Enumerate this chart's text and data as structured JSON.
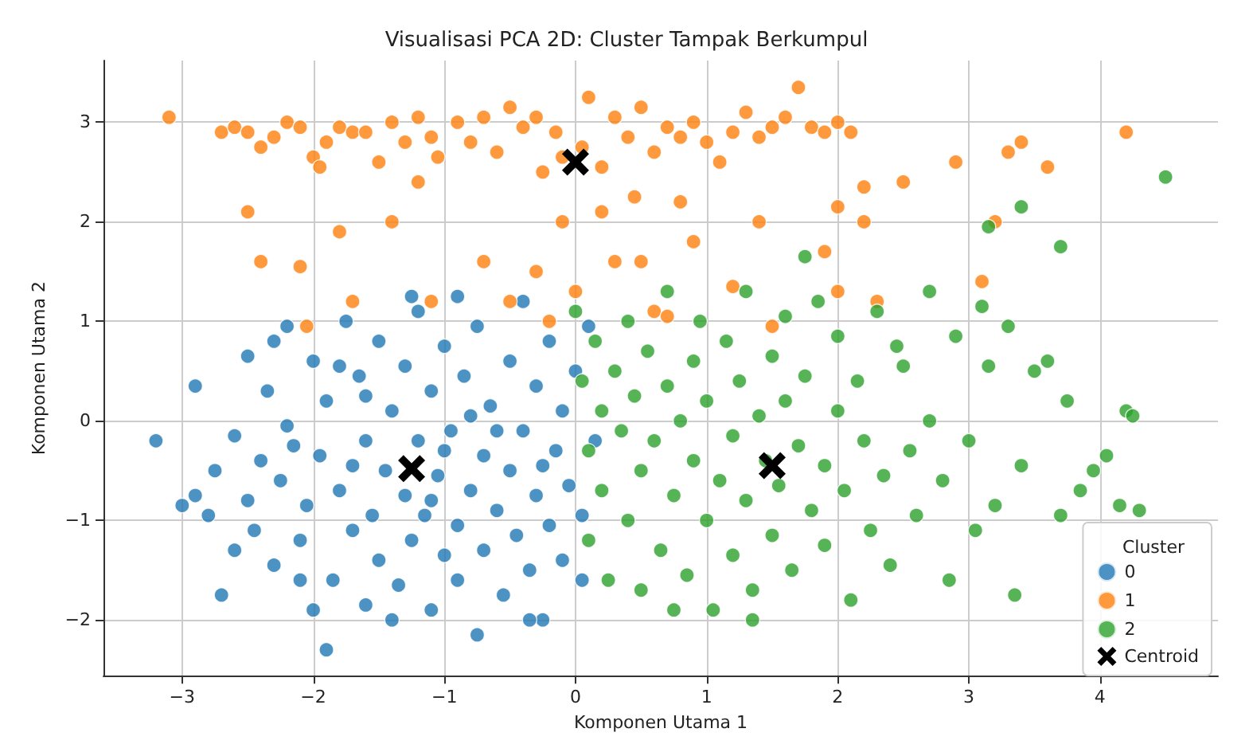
{
  "chart_data": {
    "type": "scatter",
    "title": "Visualisasi PCA 2D: Cluster Tampak Berkumpul",
    "xlabel": "Komponen Utama 1",
    "ylabel": "Komponen Utama 2",
    "legend_title": "Cluster",
    "legend": "bottom right",
    "grid": true,
    "xlim": [
      -3.6,
      4.9
    ],
    "xticks": [
      -3,
      -2,
      -1,
      0,
      1,
      2,
      3,
      4
    ],
    "ylim": [
      -2.56,
      3.62
    ],
    "yticks": [
      -2,
      -1,
      0,
      1,
      2,
      3
    ],
    "series": [
      {
        "name": "0",
        "color": "#1f77b4",
        "marker": "circle",
        "x": [
          -3.2,
          -3.0,
          -2.9,
          -2.8,
          -2.7,
          -2.75,
          -2.6,
          -2.5,
          -2.5,
          -2.45,
          -2.4,
          -2.35,
          -2.3,
          -2.25,
          -2.2,
          -2.2,
          -2.1,
          -2.05,
          -2.0,
          -2.0,
          -1.95,
          -1.9,
          -1.9,
          -1.85,
          -1.8,
          -1.75,
          -1.7,
          -1.65,
          -1.6,
          -1.6,
          -1.55,
          -1.5,
          -1.5,
          -1.45,
          -1.4,
          -1.35,
          -1.3,
          -1.3,
          -1.25,
          -1.2,
          -1.2,
          -1.15,
          -1.1,
          -1.1,
          -1.05,
          -1.0,
          -1.0,
          -0.95,
          -0.9,
          -0.9,
          -0.85,
          -0.8,
          -0.75,
          -0.75,
          -0.7,
          -0.7,
          -0.65,
          -0.6,
          -0.55,
          -0.5,
          -0.5,
          -0.45,
          -0.4,
          -0.4,
          -0.35,
          -0.3,
          -0.3,
          -0.25,
          -0.2,
          -0.2,
          -0.15,
          -0.1,
          -0.1,
          -0.05,
          0.0,
          0.05,
          0.05,
          0.1,
          0.15,
          -2.6,
          -2.3,
          -1.8,
          -1.4,
          -1.0,
          -0.6,
          -0.35,
          -1.6,
          -2.15,
          -1.1,
          -0.8,
          -0.9,
          -1.25,
          -2.1,
          -2.9,
          -1.7,
          -0.25
        ],
        "values": [
          -0.2,
          -0.85,
          -0.75,
          -0.95,
          -1.75,
          -0.5,
          -0.15,
          -0.8,
          0.65,
          -1.1,
          -0.4,
          0.3,
          -1.45,
          -0.6,
          0.95,
          -0.05,
          -1.2,
          -0.85,
          0.6,
          -1.9,
          -0.35,
          -2.3,
          0.2,
          -1.6,
          -0.7,
          1.0,
          -1.1,
          0.45,
          -0.2,
          -1.85,
          -0.95,
          0.8,
          -1.4,
          -0.5,
          0.1,
          -1.65,
          -0.75,
          0.55,
          -1.2,
          -0.2,
          1.1,
          -0.95,
          -1.9,
          0.3,
          -0.55,
          -1.35,
          0.75,
          -0.1,
          -1.05,
          -1.6,
          0.45,
          -0.7,
          -2.15,
          0.95,
          -0.35,
          -1.3,
          0.15,
          -0.9,
          -1.75,
          0.6,
          -0.5,
          -1.15,
          1.2,
          -0.1,
          -1.5,
          -0.75,
          0.35,
          -2.0,
          -1.05,
          0.8,
          -0.3,
          -1.4,
          0.1,
          -0.65,
          0.5,
          -1.6,
          -0.95,
          0.95,
          -0.2,
          -1.3,
          0.8,
          0.55,
          -2.0,
          -0.3,
          -0.1,
          -2.0,
          0.25,
          -0.25,
          -0.8,
          0.05,
          1.25,
          1.25,
          -1.6,
          0.35,
          -0.45,
          -0.45
        ]
      },
      {
        "name": "1",
        "color": "#ff7f0e",
        "marker": "circle",
        "x": [
          -3.1,
          -2.7,
          -2.6,
          -2.5,
          -2.4,
          -2.3,
          -2.2,
          -2.1,
          -2.0,
          -1.95,
          -1.9,
          -1.8,
          -1.7,
          -1.6,
          -1.5,
          -1.4,
          -1.3,
          -1.2,
          -1.1,
          -1.05,
          -0.9,
          -0.8,
          -0.7,
          -0.6,
          -0.5,
          -0.4,
          -0.3,
          -0.25,
          -0.15,
          -0.1,
          0.05,
          0.1,
          0.2,
          0.3,
          0.4,
          0.5,
          0.6,
          0.7,
          0.8,
          0.9,
          1.0,
          1.1,
          1.2,
          1.3,
          1.4,
          1.5,
          1.6,
          1.7,
          1.8,
          1.9,
          2.0,
          2.1,
          2.2,
          2.5,
          2.9,
          3.3,
          3.4,
          4.2,
          -2.5,
          -1.8,
          -1.4,
          -0.7,
          -0.5,
          -0.3,
          0.0,
          0.2,
          0.5,
          0.6,
          0.9,
          1.2,
          1.4,
          1.5,
          2.0,
          2.2,
          2.3,
          3.1,
          3.2,
          -2.1,
          -1.1,
          -1.7,
          -0.2,
          0.3,
          0.8,
          1.9,
          -1.2,
          -0.1,
          0.45,
          2.0,
          3.6,
          0.7,
          -2.05,
          -2.4
        ],
        "values": [
          3.05,
          2.9,
          2.95,
          2.9,
          2.75,
          2.85,
          3.0,
          2.95,
          2.65,
          2.55,
          2.8,
          2.95,
          2.9,
          2.9,
          2.6,
          3.0,
          2.8,
          3.05,
          2.85,
          2.65,
          3.0,
          2.8,
          3.05,
          2.7,
          3.15,
          2.95,
          3.05,
          2.5,
          2.9,
          2.65,
          2.75,
          3.25,
          2.55,
          3.05,
          2.85,
          3.15,
          2.7,
          2.95,
          2.85,
          3.0,
          2.8,
          2.6,
          2.9,
          3.1,
          2.85,
          2.95,
          3.05,
          3.35,
          2.95,
          2.9,
          3.0,
          2.9,
          2.35,
          2.4,
          2.6,
          2.7,
          2.8,
          2.9,
          2.1,
          1.9,
          2.0,
          1.6,
          1.2,
          1.5,
          1.3,
          2.1,
          1.6,
          1.1,
          1.8,
          1.35,
          2.0,
          0.95,
          1.3,
          2.0,
          1.2,
          1.4,
          2.0,
          1.55,
          1.2,
          1.2,
          1.0,
          1.6,
          2.2,
          1.7,
          2.4,
          2.0,
          2.25,
          2.15,
          2.55,
          1.05,
          0.95,
          1.6
        ]
      },
      {
        "name": "2",
        "color": "#2ca02c",
        "marker": "circle",
        "x": [
          0.0,
          0.05,
          0.1,
          0.1,
          0.15,
          0.2,
          0.2,
          0.25,
          0.3,
          0.35,
          0.4,
          0.4,
          0.45,
          0.5,
          0.5,
          0.55,
          0.6,
          0.65,
          0.7,
          0.7,
          0.75,
          0.8,
          0.85,
          0.9,
          0.9,
          0.95,
          1.0,
          1.0,
          1.05,
          1.1,
          1.15,
          1.2,
          1.2,
          1.25,
          1.3,
          1.3,
          1.35,
          1.4,
          1.45,
          1.5,
          1.5,
          1.55,
          1.6,
          1.6,
          1.65,
          1.7,
          1.75,
          1.8,
          1.85,
          1.9,
          1.9,
          2.0,
          2.0,
          2.05,
          2.1,
          2.15,
          2.2,
          2.25,
          2.3,
          2.35,
          2.4,
          2.5,
          2.55,
          2.6,
          2.7,
          2.7,
          2.8,
          2.85,
          2.9,
          3.0,
          3.05,
          3.1,
          3.15,
          3.2,
          3.3,
          3.35,
          3.4,
          3.5,
          3.6,
          3.7,
          3.7,
          3.75,
          3.85,
          4.05,
          4.15,
          4.2,
          4.3,
          4.5,
          3.4,
          3.15,
          1.35,
          0.75,
          3.95,
          4.25,
          2.45,
          1.75
        ],
        "values": [
          1.1,
          0.4,
          -0.3,
          -1.2,
          0.8,
          0.1,
          -0.7,
          -1.6,
          0.5,
          -0.1,
          -1.0,
          1.0,
          0.25,
          -0.5,
          -1.7,
          0.7,
          -0.2,
          -1.3,
          0.35,
          1.3,
          -0.75,
          0.0,
          -1.55,
          0.6,
          -0.4,
          1.0,
          -1.0,
          0.2,
          -1.9,
          -0.6,
          0.8,
          -0.15,
          -1.35,
          0.4,
          1.3,
          -0.8,
          -1.7,
          0.05,
          -0.4,
          0.65,
          -1.15,
          -0.65,
          1.05,
          0.2,
          -1.5,
          -0.25,
          0.45,
          -0.9,
          1.2,
          -0.45,
          -1.25,
          0.1,
          0.85,
          -0.7,
          -1.8,
          0.4,
          -0.2,
          -1.1,
          1.1,
          -0.55,
          -1.45,
          0.55,
          -0.3,
          -0.95,
          1.3,
          0.0,
          -0.6,
          -1.6,
          0.85,
          -0.2,
          -1.1,
          1.15,
          0.55,
          -0.85,
          0.95,
          -1.75,
          -0.45,
          0.5,
          0.6,
          1.75,
          -0.95,
          0.2,
          -0.7,
          -0.35,
          -0.85,
          0.1,
          -0.9,
          2.45,
          2.15,
          1.95,
          -2.0,
          -1.9,
          -0.5,
          0.05,
          0.75,
          1.65
        ]
      },
      {
        "name": "Centroid",
        "color": "#000000",
        "marker": "cross",
        "x": [
          -1.25,
          0.0,
          1.5
        ],
        "values": [
          -0.48,
          2.6,
          -0.45
        ]
      }
    ]
  }
}
